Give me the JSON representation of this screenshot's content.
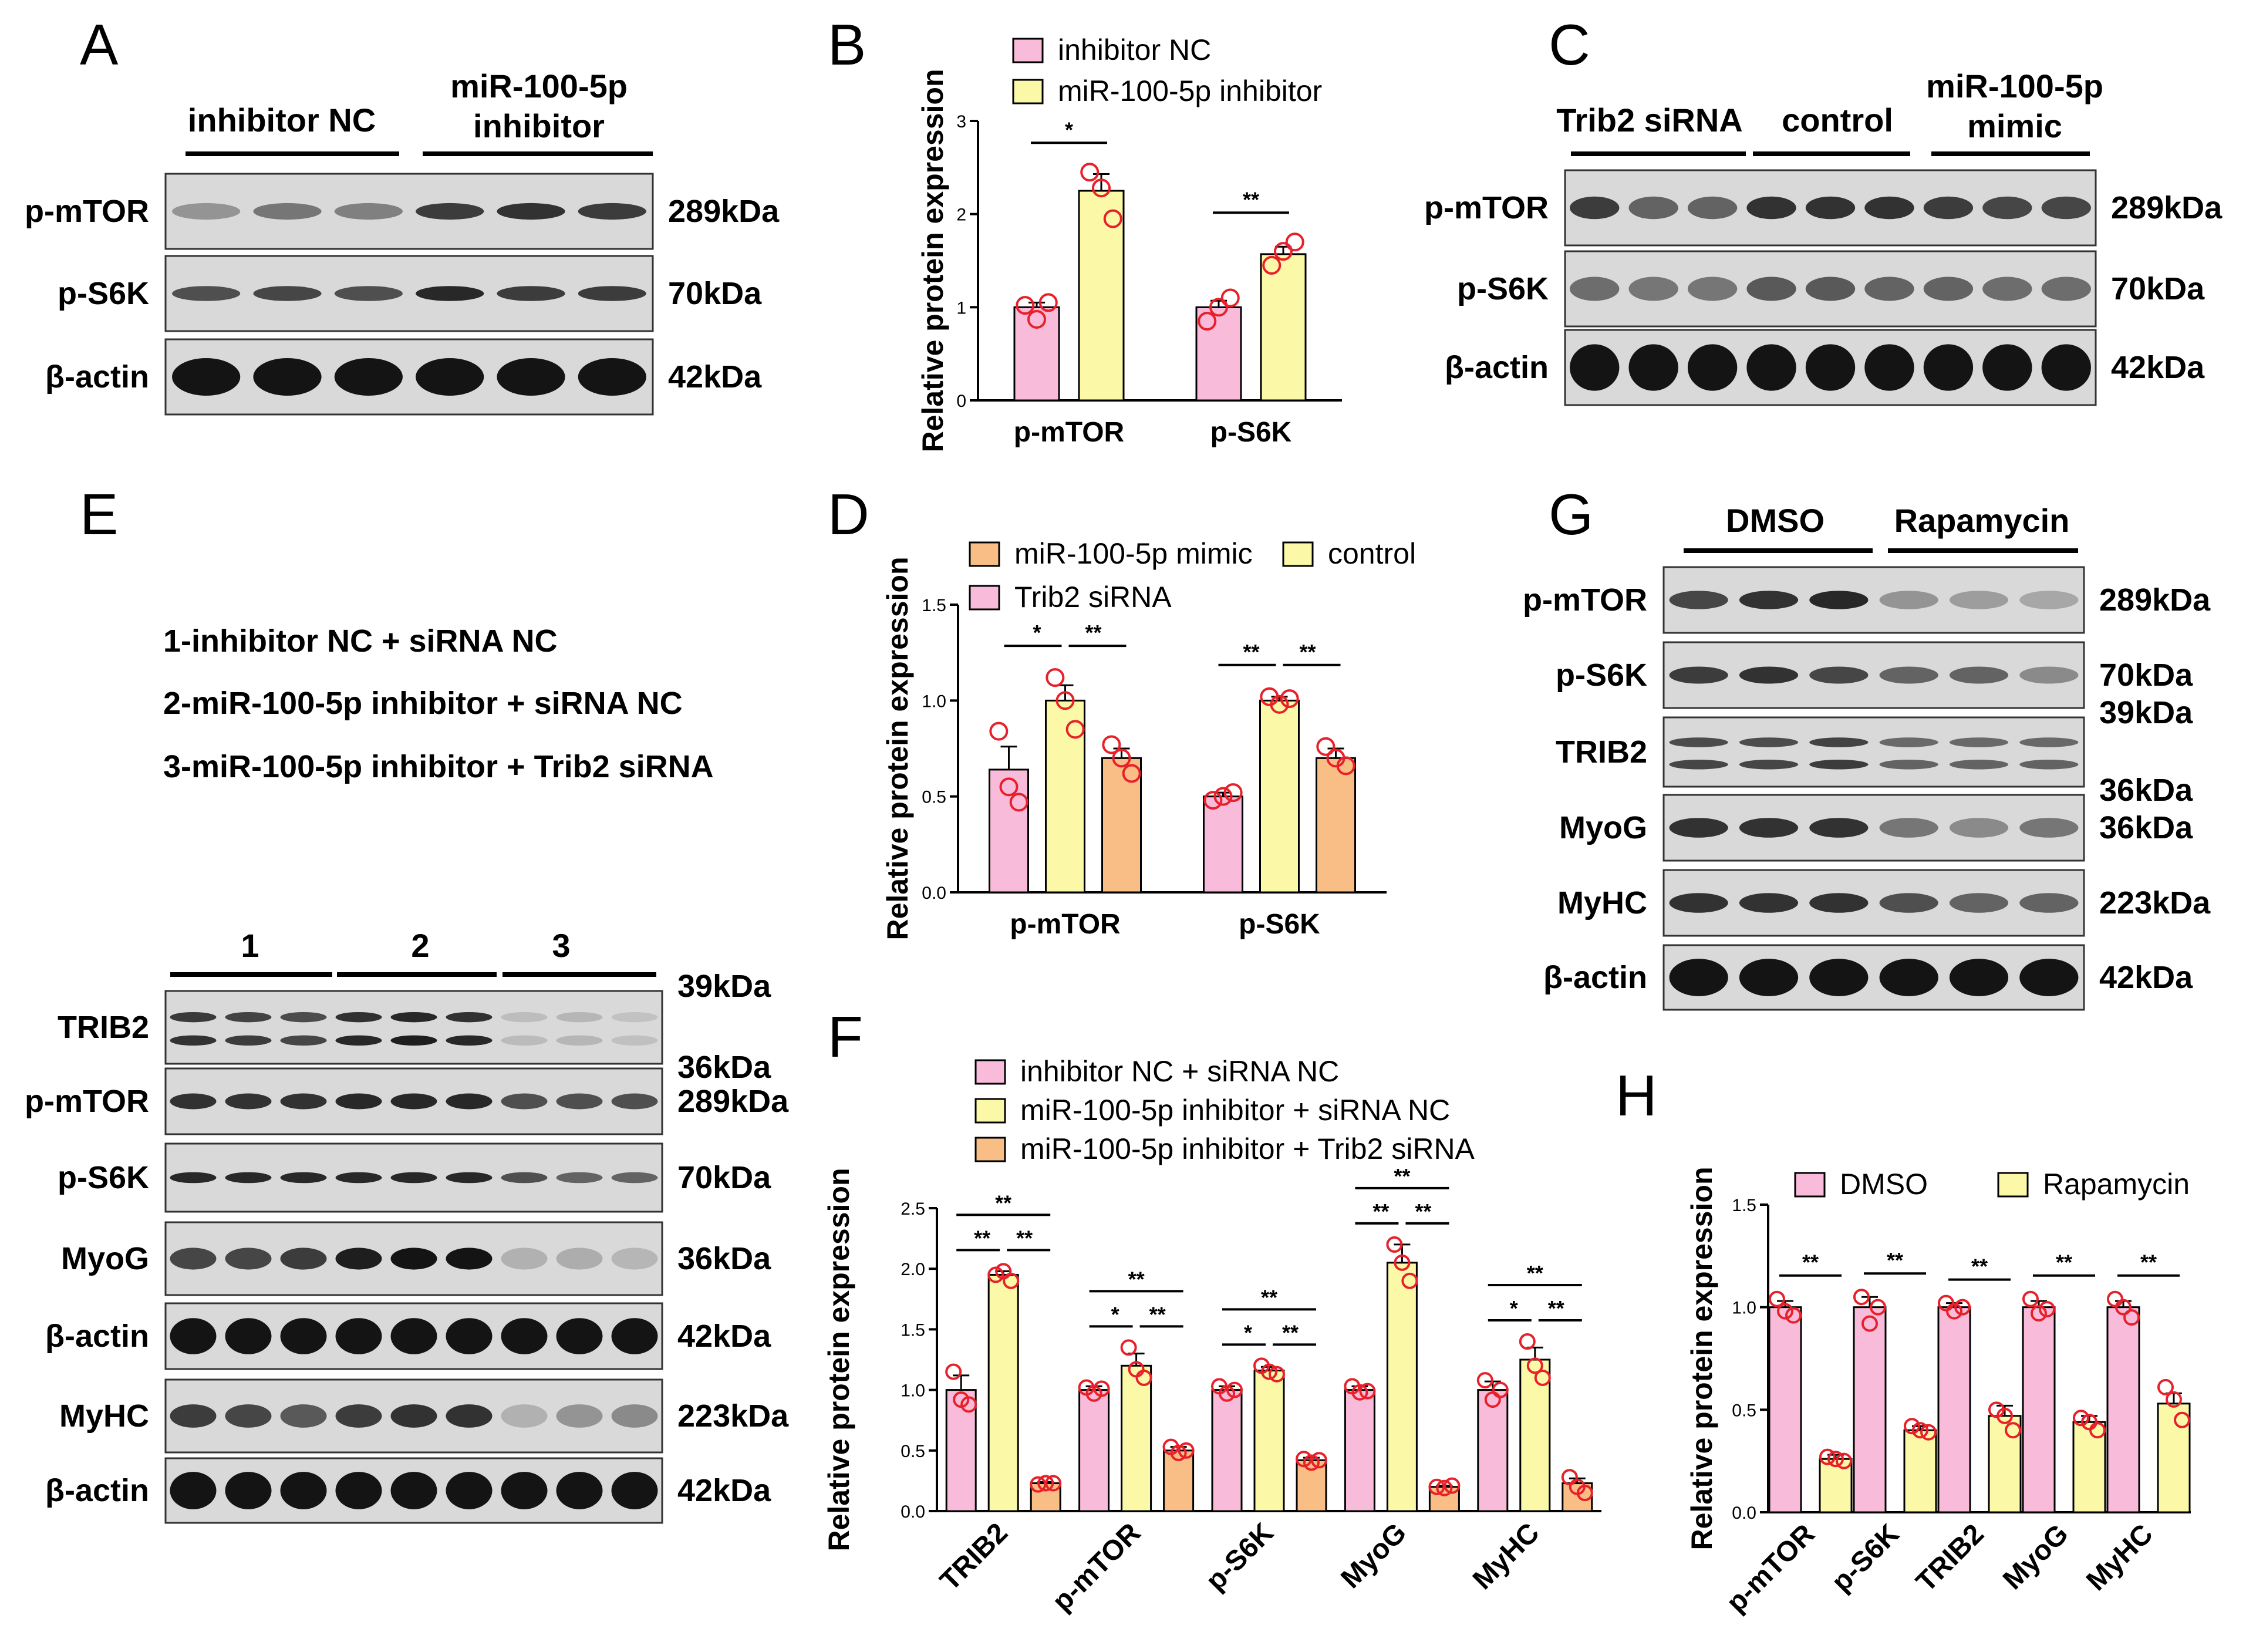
{
  "figure": {
    "panel_letters": [
      "A",
      "B",
      "C",
      "D",
      "E",
      "F",
      "G",
      "H"
    ]
  },
  "colors": {
    "pink": "#F8BBD9",
    "yellow": "#FBF9A8",
    "orange": "#F9BE85",
    "point": "#E8202A",
    "band": "#1a1a1a",
    "blot_bg": "#d6d6d6"
  },
  "blots": {
    "A": {
      "groups": [
        "inhibitor NC",
        "miR-100-5p\ninhibitor"
      ],
      "rows": [
        {
          "label": "p-mTOR",
          "kda": "289kDa"
        },
        {
          "label": "p-S6K",
          "kda": "70kDa"
        },
        {
          "label": "β-actin",
          "kda": "42kDa"
        }
      ]
    },
    "C": {
      "groups": [
        "Trib2 siRNA",
        "control",
        "miR-100-5p\nmimic"
      ],
      "rows": [
        {
          "label": "p-mTOR",
          "kda": "289kDa"
        },
        {
          "label": "p-S6K",
          "kda": "70kDa"
        },
        {
          "label": "β-actin",
          "kda": "42kDa"
        }
      ]
    },
    "E": {
      "legend": [
        "1-inhibitor NC + siRNA NC",
        "2-miR-100-5p inhibitor + siRNA NC",
        "3-miR-100-5p inhibitor + Trib2 siRNA"
      ],
      "groups": [
        "1",
        "2",
        "3"
      ],
      "rows": [
        {
          "label": "TRIB2",
          "kda": "39kDa",
          "kda2": "36kDa"
        },
        {
          "label": "p-mTOR",
          "kda": "289kDa"
        },
        {
          "label": "p-S6K",
          "kda": "70kDa"
        },
        {
          "label": "MyoG",
          "kda": "36kDa"
        },
        {
          "label": "β-actin",
          "kda": "42kDa"
        },
        {
          "label": "MyHC",
          "kda": "223kDa"
        },
        {
          "label": "β-actin",
          "kda": "42kDa"
        }
      ]
    },
    "G": {
      "groups": [
        "DMSO",
        "Rapamycin"
      ],
      "rows": [
        {
          "label": "p-mTOR",
          "kda": "289kDa"
        },
        {
          "label": "p-S6K",
          "kda": "70kDa"
        },
        {
          "label": "TRIB2",
          "kda": "39kDa",
          "kda2": "36kDa"
        },
        {
          "label": "MyoG",
          "kda": "36kDa"
        },
        {
          "label": "MyHC",
          "kda": "223kDa"
        },
        {
          "label": "β-actin",
          "kda": "42kDa"
        }
      ]
    }
  },
  "chart_data": [
    {
      "id": "B",
      "type": "bar",
      "ylabel": "Relative  protein expression",
      "ylim": [
        0,
        3
      ],
      "yticks": [
        "0",
        "1",
        "2",
        "3"
      ],
      "categories": [
        "p-mTOR",
        "p-S6K"
      ],
      "series": [
        {
          "name": "inhibitor NC",
          "color": "#F8BBD9",
          "values": [
            1.0,
            1.0
          ],
          "points": [
            [
              1.02,
              0.87,
              1.05
            ],
            [
              0.85,
              1.0,
              1.1
            ]
          ],
          "err": [
            0.05,
            0.07
          ]
        },
        {
          "name": "miR-100-5p inhibitor",
          "color": "#FBF9A8",
          "values": [
            2.25,
            1.57
          ],
          "points": [
            [
              2.45,
              2.28,
              1.95
            ],
            [
              1.45,
              1.6,
              1.7
            ]
          ],
          "err": [
            0.18,
            0.08
          ]
        }
      ],
      "significance": [
        [
          "*"
        ],
        [
          "**"
        ]
      ]
    },
    {
      "id": "D",
      "type": "bar",
      "ylabel": "Relative  protein expression",
      "ylim": [
        0,
        1.5
      ],
      "yticks": [
        "0.0",
        "0.5",
        "1.0",
        "1.5"
      ],
      "categories": [
        "p-mTOR",
        "p-S6K"
      ],
      "series": [
        {
          "name": "Trib2 siRNA",
          "color": "#F8BBD9",
          "values": [
            0.64,
            0.5
          ],
          "points": [
            [
              0.84,
              0.55,
              0.47
            ],
            [
              0.48,
              0.5,
              0.52
            ]
          ],
          "err": [
            0.12,
            0.02
          ]
        },
        {
          "name": "control",
          "color": "#FBF9A8",
          "values": [
            1.0,
            1.0
          ],
          "points": [
            [
              1.12,
              1.0,
              0.85
            ],
            [
              1.02,
              0.98,
              1.01
            ]
          ],
          "err": [
            0.08,
            0.02
          ]
        },
        {
          "name": "miR-100-5p mimic",
          "color": "#F9BE85",
          "values": [
            0.7,
            0.7
          ],
          "points": [
            [
              0.77,
              0.7,
              0.62
            ],
            [
              0.76,
              0.7,
              0.66
            ]
          ],
          "err": [
            0.05,
            0.05
          ]
        }
      ],
      "legend_order": [
        "miR-100-5p mimic",
        "control",
        "Trib2 siRNA"
      ],
      "significance": [
        [
          "*",
          "**"
        ],
        [
          "**",
          "**"
        ]
      ]
    },
    {
      "id": "F",
      "type": "bar",
      "ylabel": "Relative  protein expression",
      "ylim": [
        0,
        2.5
      ],
      "yticks": [
        "0.0",
        "0.5",
        "1.0",
        "1.5",
        "2.0",
        "2.5"
      ],
      "categories": [
        "TRIB2",
        "p-mTOR",
        "p-S6K",
        "MyoG",
        "MyHC"
      ],
      "series": [
        {
          "name": "inhibitor NC + siRNA NC",
          "color": "#F8BBD9",
          "values": [
            1.0,
            1.0,
            1.0,
            1.0,
            1.0
          ],
          "points": [
            [
              1.15,
              0.92,
              0.88
            ],
            [
              1.02,
              0.97,
              1.01
            ],
            [
              1.03,
              0.97,
              1.0
            ],
            [
              1.03,
              0.98,
              0.99
            ],
            [
              1.08,
              0.92,
              1.0
            ]
          ],
          "err": [
            0.12,
            0.03,
            0.03,
            0.03,
            0.07
          ]
        },
        {
          "name": "miR-100-5p inhibitor + siRNA NC",
          "color": "#FBF9A8",
          "values": [
            1.95,
            1.2,
            1.16,
            2.05,
            1.25
          ],
          "points": [
            [
              1.95,
              1.98,
              1.9
            ],
            [
              1.35,
              1.17,
              1.1
            ],
            [
              1.2,
              1.15,
              1.13
            ],
            [
              2.2,
              2.05,
              1.9
            ],
            [
              1.4,
              1.2,
              1.1
            ]
          ],
          "err": [
            0.03,
            0.1,
            0.03,
            0.15,
            0.1
          ]
        },
        {
          "name": "miR-100-5p inhibitor + Trib2 siRNA",
          "color": "#F9BE85",
          "values": [
            0.23,
            0.5,
            0.42,
            0.2,
            0.23
          ],
          "points": [
            [
              0.22,
              0.23,
              0.23
            ],
            [
              0.53,
              0.48,
              0.5
            ],
            [
              0.43,
              0.4,
              0.42
            ],
            [
              0.2,
              0.19,
              0.21
            ],
            [
              0.28,
              0.2,
              0.15
            ]
          ],
          "err": [
            0.01,
            0.03,
            0.02,
            0.01,
            0.04
          ]
        }
      ],
      "legend_order": [
        "inhibitor NC + siRNA NC",
        "miR-100-5p inhibitor + siRNA NC",
        "miR-100-5p inhibitor + Trib2 siRNA"
      ],
      "significance": [
        [
          "**",
          "**",
          "**"
        ],
        [
          "*",
          "**",
          "**"
        ],
        [
          "*",
          "**",
          "**"
        ],
        [
          "**",
          "**",
          "**"
        ],
        [
          "*",
          "**",
          "**"
        ]
      ]
    },
    {
      "id": "H",
      "type": "bar",
      "ylabel": "Relative  protein expression",
      "ylim": [
        0,
        1.5
      ],
      "yticks": [
        "0.0",
        "0.5",
        "1.0",
        "1.5"
      ],
      "categories": [
        "p-mTOR",
        "p-S6K",
        "TRIB2",
        "MyoG",
        "MyHC"
      ],
      "series": [
        {
          "name": "DMSO",
          "color": "#F8BBD9",
          "values": [
            1.0,
            1.0,
            1.0,
            1.0,
            1.0
          ],
          "points": [
            [
              1.04,
              0.98,
              0.96
            ],
            [
              1.05,
              0.92,
              1.0
            ],
            [
              1.02,
              0.98,
              1.0
            ],
            [
              1.04,
              0.97,
              0.99
            ],
            [
              1.04,
              1.0,
              0.95
            ]
          ],
          "err": [
            0.03,
            0.05,
            0.02,
            0.03,
            0.03
          ]
        },
        {
          "name": "Rapamycin",
          "color": "#FBF9A8",
          "values": [
            0.26,
            0.4,
            0.47,
            0.44,
            0.53
          ],
          "points": [
            [
              0.27,
              0.26,
              0.25
            ],
            [
              0.42,
              0.4,
              0.39
            ],
            [
              0.5,
              0.47,
              0.4
            ],
            [
              0.46,
              0.44,
              0.4
            ],
            [
              0.61,
              0.55,
              0.45
            ]
          ],
          "err": [
            0.02,
            0.02,
            0.05,
            0.03,
            0.05
          ]
        }
      ],
      "significance": [
        [
          "**"
        ],
        [
          "**"
        ],
        [
          "**"
        ],
        [
          "**"
        ],
        [
          "**"
        ]
      ]
    }
  ]
}
